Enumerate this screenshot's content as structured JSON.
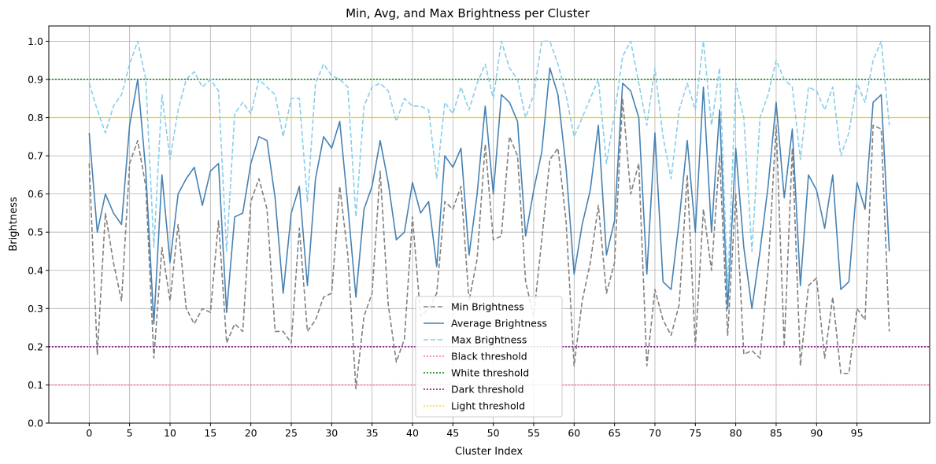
{
  "chart_data": {
    "type": "line",
    "title": "Min, Avg, and Max Brightness per Cluster",
    "xlabel": "Cluster Index",
    "ylabel": "Brightness",
    "xlim": [
      -5,
      104
    ],
    "ylim": [
      0.0,
      1.04
    ],
    "grid": true,
    "legend_placement": "bottom-center",
    "x_ticks": [
      0,
      5,
      10,
      15,
      20,
      25,
      30,
      35,
      40,
      45,
      50,
      55,
      60,
      65,
      70,
      75,
      80,
      85,
      90,
      95
    ],
    "x_tick_labels": [
      "0",
      "5",
      "10",
      "15",
      "20",
      "25",
      "30",
      "35",
      "40",
      "45",
      "50",
      "55",
      "60",
      "65",
      "70",
      "75",
      "80",
      "85",
      "90",
      "95"
    ],
    "y_ticks": [
      0.0,
      0.1,
      0.2,
      0.3,
      0.4,
      0.5,
      0.6,
      0.7,
      0.8,
      0.9,
      1.0
    ],
    "y_tick_labels": [
      "0.0",
      "0.1",
      "0.2",
      "0.3",
      "0.4",
      "0.5",
      "0.6",
      "0.7",
      "0.8",
      "0.9",
      "1.0"
    ],
    "series": [
      {
        "name": "Min Brightness",
        "color": "#808080",
        "style": "dashed",
        "values": [
          0.68,
          0.18,
          0.55,
          0.42,
          0.32,
          0.68,
          0.74,
          0.62,
          0.17,
          0.46,
          0.32,
          0.52,
          0.3,
          0.26,
          0.3,
          0.29,
          0.53,
          0.21,
          0.26,
          0.24,
          0.58,
          0.64,
          0.56,
          0.24,
          0.24,
          0.21,
          0.51,
          0.24,
          0.27,
          0.33,
          0.34,
          0.62,
          0.44,
          0.09,
          0.28,
          0.34,
          0.66,
          0.31,
          0.16,
          0.22,
          0.54,
          0.28,
          0.3,
          0.34,
          0.58,
          0.56,
          0.62,
          0.32,
          0.43,
          0.73,
          0.48,
          0.49,
          0.75,
          0.7,
          0.37,
          0.28,
          0.48,
          0.69,
          0.72,
          0.53,
          0.15,
          0.32,
          0.42,
          0.57,
          0.34,
          0.42,
          0.85,
          0.6,
          0.68,
          0.15,
          0.35,
          0.27,
          0.23,
          0.31,
          0.65,
          0.2,
          0.56,
          0.4,
          0.7,
          0.23,
          0.6,
          0.18,
          0.19,
          0.17,
          0.4,
          0.78,
          0.2,
          0.72,
          0.15,
          0.36,
          0.38,
          0.17,
          0.33,
          0.13,
          0.13,
          0.3,
          0.27,
          0.78,
          0.77,
          0.24
        ]
      },
      {
        "name": "Average Brightness",
        "color": "#4682b4",
        "style": "solid",
        "values": [
          0.76,
          0.5,
          0.6,
          0.55,
          0.52,
          0.78,
          0.9,
          0.66,
          0.26,
          0.65,
          0.42,
          0.6,
          0.64,
          0.67,
          0.57,
          0.66,
          0.68,
          0.29,
          0.54,
          0.55,
          0.68,
          0.75,
          0.74,
          0.59,
          0.34,
          0.55,
          0.62,
          0.36,
          0.64,
          0.75,
          0.72,
          0.79,
          0.57,
          0.33,
          0.56,
          0.62,
          0.74,
          0.63,
          0.48,
          0.5,
          0.63,
          0.55,
          0.58,
          0.41,
          0.7,
          0.67,
          0.72,
          0.44,
          0.6,
          0.83,
          0.6,
          0.86,
          0.84,
          0.79,
          0.49,
          0.61,
          0.71,
          0.93,
          0.86,
          0.67,
          0.39,
          0.52,
          0.61,
          0.78,
          0.44,
          0.53,
          0.89,
          0.87,
          0.8,
          0.39,
          0.76,
          0.37,
          0.35,
          0.53,
          0.74,
          0.5,
          0.88,
          0.5,
          0.82,
          0.3,
          0.72,
          0.46,
          0.3,
          0.45,
          0.62,
          0.84,
          0.59,
          0.77,
          0.36,
          0.65,
          0.61,
          0.51,
          0.65,
          0.35,
          0.37,
          0.63,
          0.56,
          0.84,
          0.86,
          0.45
        ]
      },
      {
        "name": "Max Brightness",
        "color": "#87ceeb",
        "style": "dashed",
        "values": [
          0.89,
          0.82,
          0.76,
          0.83,
          0.86,
          0.94,
          1.0,
          0.9,
          0.46,
          0.86,
          0.69,
          0.82,
          0.9,
          0.92,
          0.88,
          0.9,
          0.87,
          0.45,
          0.81,
          0.84,
          0.81,
          0.9,
          0.88,
          0.86,
          0.75,
          0.85,
          0.85,
          0.58,
          0.89,
          0.94,
          0.91,
          0.9,
          0.88,
          0.54,
          0.83,
          0.88,
          0.89,
          0.87,
          0.79,
          0.85,
          0.83,
          0.83,
          0.82,
          0.64,
          0.84,
          0.81,
          0.88,
          0.82,
          0.89,
          0.94,
          0.85,
          1.0,
          0.93,
          0.9,
          0.8,
          0.86,
          1.0,
          1.0,
          0.94,
          0.86,
          0.75,
          0.8,
          0.85,
          0.9,
          0.68,
          0.81,
          0.96,
          1.0,
          0.89,
          0.78,
          0.93,
          0.75,
          0.64,
          0.82,
          0.89,
          0.82,
          1.0,
          0.78,
          0.93,
          0.35,
          0.89,
          0.8,
          0.45,
          0.8,
          0.86,
          0.95,
          0.9,
          0.88,
          0.69,
          0.88,
          0.87,
          0.82,
          0.88,
          0.7,
          0.76,
          0.89,
          0.84,
          0.95,
          1.0,
          0.78
        ]
      }
    ],
    "thresholds": [
      {
        "name": "Black threshold",
        "value": 0.1,
        "color": "#ff69b4",
        "style": "dotted"
      },
      {
        "name": "White threshold",
        "value": 0.9,
        "color": "#008000",
        "style": "dotted"
      },
      {
        "name": "Dark threshold",
        "value": 0.2,
        "color": "#800080",
        "style": "dotted"
      },
      {
        "name": "Light threshold",
        "value": 0.8,
        "color": "#ffd700",
        "style": "dotted"
      }
    ]
  }
}
